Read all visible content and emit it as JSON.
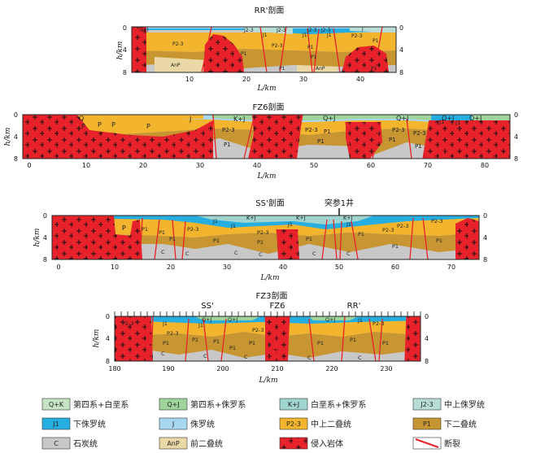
{
  "colors": {
    "QK": "#c6e3c4",
    "QJ": "#9fd59c",
    "KJ": "#9fd4cf",
    "J23": "#b8ddd6",
    "J1": "#27aee0",
    "J": "#a9d7f2",
    "P23": "#f2b52d",
    "P1": "#c79532",
    "C": "#c8c8c8",
    "AnP": "#ead9a6",
    "intrusive": "#e8222b",
    "fault": "#e8222b"
  },
  "sections": [
    {
      "id": "RR",
      "title": "RR'剖面",
      "xlabel": "L/km",
      "ylabel": "h/km",
      "x_ticks": [
        "10",
        "20",
        "30",
        "40"
      ],
      "y_ticks": [
        "0",
        "4",
        "8"
      ],
      "unit_labels": [
        "Q+J",
        "J2-3",
        "J2-3",
        "J1",
        "J2-3",
        "J1",
        "J2-3",
        "J1",
        "J",
        "P2-3",
        "P1",
        "P2-3",
        "P1",
        "P2-3",
        "P1",
        "P1",
        "AnP",
        "AnP",
        "P1",
        "P1"
      ]
    },
    {
      "id": "FZ6",
      "title": "FZ6剖面",
      "xlabel": "L/km",
      "ylabel": "h/km",
      "x_ticks": [
        "0",
        "10",
        "20",
        "30",
        "40",
        "50",
        "60",
        "70",
        "80"
      ],
      "y_ticks": [
        "0",
        "4",
        "8"
      ],
      "unit_labels": [
        "Q",
        "P",
        "P",
        "P",
        "P",
        "J",
        "K+J",
        "Q+J",
        "Q+J",
        "Q+J",
        "J1",
        "J1",
        "Q+J",
        "P2-3",
        "P2-3",
        "P2-3",
        "P2-3",
        "P1",
        "P1",
        "P1",
        "P1",
        "P1"
      ]
    },
    {
      "id": "SS",
      "title": "SS'剖面",
      "xlabel": "L/km",
      "ylabel": "h/km",
      "x_ticks": [
        "0",
        "10",
        "20",
        "30",
        "40",
        "50",
        "60",
        "70"
      ],
      "y_ticks": [
        "0",
        "4",
        "8"
      ],
      "well_label": "突参1井",
      "unit_labels": [
        "P",
        "P1",
        "P1",
        "P1",
        "P2-3",
        "J1",
        "K+J",
        "J1",
        "K+J",
        "K+J",
        "J1",
        "J1",
        "P2-3",
        "P2-3",
        "P1",
        "P1",
        "P1",
        "P1",
        "P2-3",
        "C",
        "C",
        "C",
        "C",
        "C",
        "C",
        "P1",
        "P2-3",
        "P1"
      ]
    },
    {
      "id": "FZ3",
      "title": "FZ3剖面",
      "xlabel": "L/km",
      "ylabel": "h/km",
      "x_ticks": [
        "180",
        "190",
        "200",
        "210",
        "220",
        "230"
      ],
      "y_ticks": [
        "0",
        "4",
        "8"
      ],
      "crossing_labels": [
        "SS'",
        "FZ6",
        "RR'"
      ],
      "unit_labels": [
        "P2-3",
        "J1",
        "J1",
        "Q+J",
        "Q+J",
        "Q+J",
        "P2-3",
        "P2-3",
        "J1",
        "P2-3",
        "P1",
        "P1",
        "P1",
        "P1",
        "P1",
        "P1",
        "P1",
        "P1",
        "C",
        "C",
        "C",
        "C",
        "C"
      ]
    }
  ],
  "legend": [
    {
      "code": "QK",
      "symbol": "Q+K",
      "label": "第四系+白垩系"
    },
    {
      "code": "QJ",
      "symbol": "Q+J",
      "label": "第四系+侏罗系"
    },
    {
      "code": "KJ",
      "symbol": "K+J",
      "label": "白垩系+侏罗系"
    },
    {
      "code": "J23",
      "symbol": "J2-3",
      "label": "中上侏罗统"
    },
    {
      "code": "J1",
      "symbol": "J1",
      "label": "下侏罗统"
    },
    {
      "code": "J",
      "symbol": "J",
      "label": "侏罗统"
    },
    {
      "code": "P23",
      "symbol": "P2-3",
      "label": "中上二叠统"
    },
    {
      "code": "P1",
      "symbol": "P1",
      "label": "下二叠统"
    },
    {
      "code": "C",
      "symbol": "C",
      "label": "石炭统"
    },
    {
      "code": "AnP",
      "symbol": "AnP",
      "label": "前二叠统"
    },
    {
      "code": "intrusive",
      "symbol": "+",
      "label": "侵入岩体"
    },
    {
      "code": "fault",
      "symbol": "",
      "label": "断裂"
    }
  ]
}
